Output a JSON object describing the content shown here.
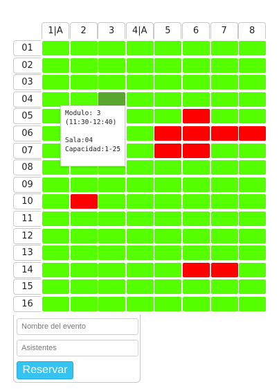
{
  "columns": [
    "1|A",
    "2",
    "3",
    "4|A",
    "5",
    "6",
    "7",
    "8"
  ],
  "rows": [
    "01",
    "02",
    "03",
    "04",
    "05",
    "06",
    "07",
    "08",
    "09",
    "10",
    "11",
    "12",
    "13",
    "14",
    "15",
    "16"
  ],
  "status_colors": {
    "available": "#55ff00",
    "reserved": "#ff0000",
    "selected": "#5aa631"
  },
  "reserved_cells": [
    {
      "row": "05",
      "col": "6"
    },
    {
      "row": "06",
      "col": "5"
    },
    {
      "row": "06",
      "col": "6"
    },
    {
      "row": "06",
      "col": "7"
    },
    {
      "row": "06",
      "col": "8"
    },
    {
      "row": "07",
      "col": "5"
    },
    {
      "row": "07",
      "col": "6"
    },
    {
      "row": "10",
      "col": "2"
    },
    {
      "row": "14",
      "col": "6"
    },
    {
      "row": "14",
      "col": "7"
    }
  ],
  "selected_cell": {
    "row": "04",
    "col": "3"
  },
  "tooltip": {
    "module": "Modulo: 3",
    "time": "(11:30-12:40)",
    "room": "Sala:04",
    "capacity": "Capacidad:1-25"
  },
  "form": {
    "event_name_placeholder": "Nombre del evento",
    "attendees_placeholder": "Asistentes",
    "reserve_label": "Reservar"
  }
}
